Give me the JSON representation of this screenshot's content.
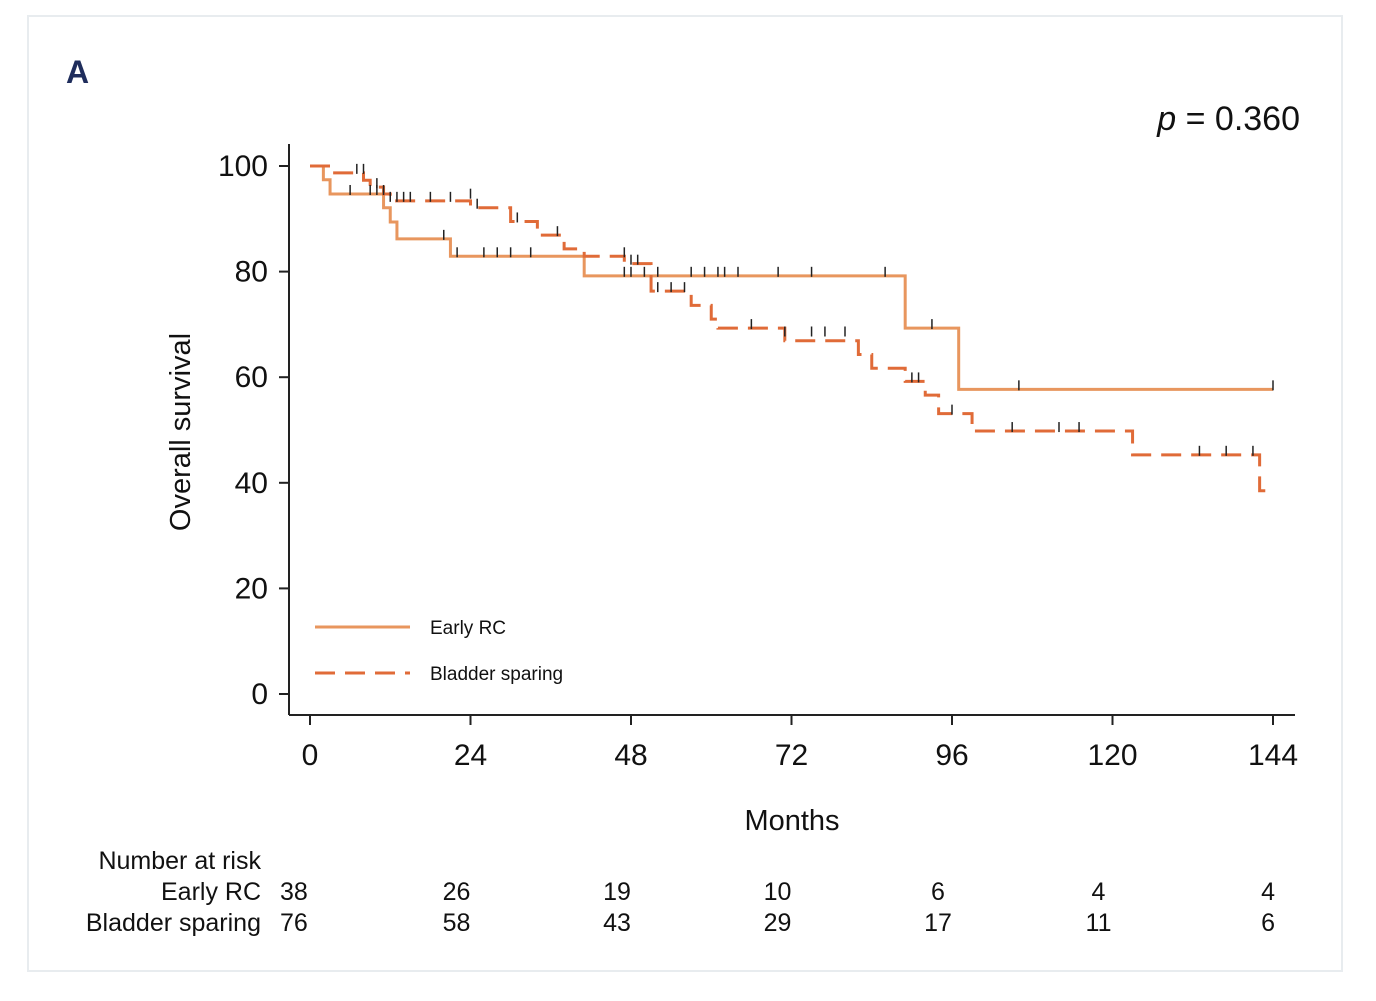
{
  "panel_label": "A",
  "p_value_prefix": "p",
  "p_value_rest": " = 0.360",
  "colors": {
    "early_rc": "#e8965e",
    "bladder_sparing": "#e06b38",
    "censor_tick": "#222222",
    "panel_label": "#1f2d5c",
    "frame": "#e8ecef"
  },
  "chart_data": {
    "type": "line",
    "title": "",
    "xlabel": "Months",
    "ylabel": "Overall survival",
    "xlim": [
      0,
      144
    ],
    "ylim": [
      0,
      100
    ],
    "x_ticks": [
      "0",
      "24",
      "48",
      "72",
      "96",
      "120",
      "144"
    ],
    "y_ticks": [
      "100",
      "80",
      "60",
      "40",
      "20",
      "0"
    ],
    "legend_position": "bottom-left",
    "series": [
      {
        "name": "Early RC",
        "line_style": "solid",
        "steps": [
          [
            0,
            100
          ],
          [
            2,
            97.4
          ],
          [
            3,
            94.7
          ],
          [
            11,
            92.1
          ],
          [
            12,
            89.4
          ],
          [
            13,
            86.2
          ],
          [
            21,
            82.9
          ],
          [
            41,
            79.2
          ],
          [
            89,
            69.3
          ],
          [
            97,
            57.7
          ],
          [
            144,
            57.7
          ]
        ],
        "censored": [
          [
            6,
            94.7
          ],
          [
            9,
            94.7
          ],
          [
            10,
            94.7
          ],
          [
            20,
            86.2
          ],
          [
            22,
            82.9
          ],
          [
            26,
            82.9
          ],
          [
            28,
            82.9
          ],
          [
            30,
            82.9
          ],
          [
            33,
            82.9
          ],
          [
            47,
            79.2
          ],
          [
            48,
            79.2
          ],
          [
            50,
            79.2
          ],
          [
            52,
            79.2
          ],
          [
            57,
            79.2
          ],
          [
            59,
            79.2
          ],
          [
            61,
            79.2
          ],
          [
            62,
            79.2
          ],
          [
            64,
            79.2
          ],
          [
            70,
            79.2
          ],
          [
            75,
            79.2
          ],
          [
            86,
            79.2
          ],
          [
            93,
            69.3
          ],
          [
            106,
            57.7
          ],
          [
            144,
            57.7
          ]
        ]
      },
      {
        "name": "Bladder sparing",
        "line_style": "dashed",
        "steps": [
          [
            0,
            100
          ],
          [
            3,
            98.7
          ],
          [
            8,
            97.3
          ],
          [
            9,
            96.0
          ],
          [
            11,
            94.7
          ],
          [
            12,
            93.4
          ],
          [
            24,
            92.1
          ],
          [
            30,
            89.5
          ],
          [
            34,
            86.9
          ],
          [
            38,
            84.3
          ],
          [
            41,
            82.9
          ],
          [
            47,
            81.5
          ],
          [
            51,
            76.3
          ],
          [
            57,
            73.6
          ],
          [
            60,
            71.0
          ],
          [
            61,
            69.3
          ],
          [
            71,
            66.9
          ],
          [
            82,
            64.3
          ],
          [
            84,
            61.7
          ],
          [
            89,
            59.2
          ],
          [
            92,
            56.6
          ],
          [
            94,
            53.1
          ],
          [
            99,
            49.8
          ],
          [
            123,
            45.3
          ],
          [
            142,
            38.5
          ],
          [
            143,
            38.5
          ]
        ],
        "censored": [
          [
            7,
            98.7
          ],
          [
            8,
            98.7
          ],
          [
            10,
            96.0
          ],
          [
            11,
            94.7
          ],
          [
            12,
            93.4
          ],
          [
            13,
            93.4
          ],
          [
            14,
            93.4
          ],
          [
            15,
            93.4
          ],
          [
            18,
            93.4
          ],
          [
            21,
            93.4
          ],
          [
            24,
            94.0
          ],
          [
            25,
            92.1
          ],
          [
            31,
            89.5
          ],
          [
            37,
            86.9
          ],
          [
            47,
            82.9
          ],
          [
            48,
            81.5
          ],
          [
            49,
            81.5
          ],
          [
            52,
            76.3
          ],
          [
            54,
            76.3
          ],
          [
            56,
            76.3
          ],
          [
            66,
            69.3
          ],
          [
            71,
            67.9
          ],
          [
            75,
            67.9
          ],
          [
            77,
            67.9
          ],
          [
            80,
            67.9
          ],
          [
            90,
            59.2
          ],
          [
            91,
            59.2
          ],
          [
            96,
            53.1
          ],
          [
            105,
            49.8
          ],
          [
            112,
            49.8
          ],
          [
            115,
            49.8
          ],
          [
            133,
            45.3
          ],
          [
            137,
            45.3
          ],
          [
            141,
            45.3
          ]
        ]
      }
    ],
    "risk_table": {
      "header": "Number at risk",
      "rows": [
        {
          "label": "Early RC",
          "values": [
            "38",
            "26",
            "19",
            "10",
            "6",
            "4",
            "4"
          ]
        },
        {
          "label": "Bladder sparing",
          "values": [
            "76",
            "58",
            "43",
            "29",
            "17",
            "11",
            "6"
          ]
        }
      ]
    }
  }
}
